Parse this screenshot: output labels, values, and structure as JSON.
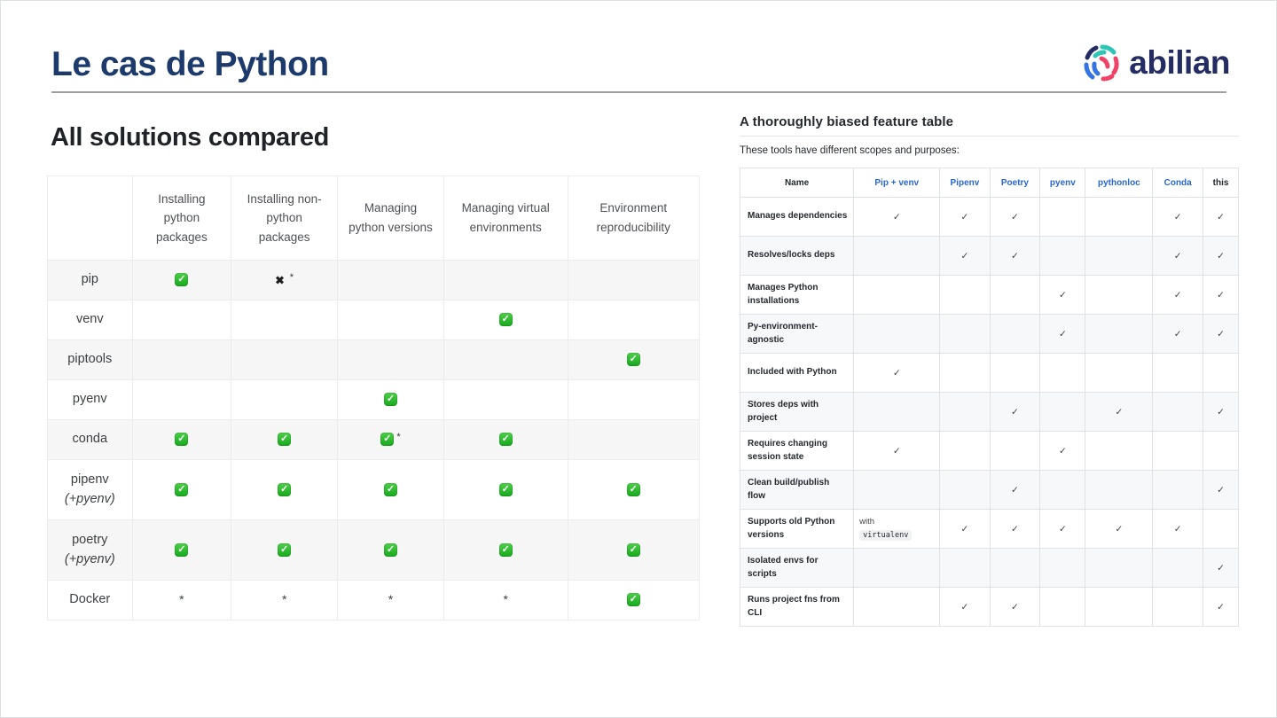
{
  "slide": {
    "title": "Le cas de Python"
  },
  "logo": {
    "wordmark": "abilian"
  },
  "icons": {
    "check": "✓",
    "cross": "✖",
    "asterisk": "*"
  },
  "colors": {
    "title_navy": "#1c3a6b",
    "logo_navy": "#242d63",
    "logo_teal": "#2cc5b6",
    "logo_blue": "#3574e3",
    "logo_pink": "#ef4468",
    "link_blue": "#2866d2",
    "check_green": "#22ac22"
  },
  "left_panel": {
    "heading": "All solutions compared",
    "table": {
      "columns": [
        "",
        "Installing python packages",
        "Installing non-python packages",
        "Managing python versions",
        "Managing virtual environments",
        "Environment reproducibility"
      ],
      "rows": [
        {
          "label": "pip",
          "sublabel": "",
          "cells": [
            "yes",
            "x*",
            "",
            "",
            ""
          ]
        },
        {
          "label": "venv",
          "sublabel": "",
          "cells": [
            "",
            "",
            "",
            "yes",
            ""
          ]
        },
        {
          "label": "piptools",
          "sublabel": "",
          "cells": [
            "",
            "",
            "",
            "",
            "yes"
          ]
        },
        {
          "label": "pyenv",
          "sublabel": "",
          "cells": [
            "",
            "",
            "yes",
            "",
            ""
          ]
        },
        {
          "label": "conda",
          "sublabel": "",
          "cells": [
            "yes",
            "yes",
            "yes*",
            "yes",
            ""
          ]
        },
        {
          "label": "pipenv",
          "sublabel": "(+pyenv)",
          "cells": [
            "yes",
            "yes",
            "yes",
            "yes",
            "yes"
          ]
        },
        {
          "label": "poetry",
          "sublabel": "(+pyenv)",
          "cells": [
            "yes",
            "yes",
            "yes",
            "yes",
            "yes"
          ]
        },
        {
          "label": "Docker",
          "sublabel": "",
          "cells": [
            "*",
            "*",
            "*",
            "*",
            "yes"
          ]
        }
      ]
    }
  },
  "right_panel": {
    "heading": "A thoroughly biased feature table",
    "subtitle": "These tools have different scopes and purposes:",
    "table": {
      "columns": [
        "Name",
        "Pip + venv",
        "Pipenv",
        "Poetry",
        "pyenv",
        "pythonloc",
        "Conda",
        "this"
      ],
      "link_columns": [
        "Pip + venv",
        "Pipenv",
        "Poetry",
        "pyenv",
        "pythonloc",
        "Conda"
      ],
      "rows": [
        {
          "label": "Manages dependencies",
          "cells": [
            "yes",
            "yes",
            "yes",
            "",
            "",
            "yes",
            "yes"
          ]
        },
        {
          "label": "Resolves/locks deps",
          "cells": [
            "",
            "yes",
            "yes",
            "",
            "",
            "yes",
            "yes"
          ]
        },
        {
          "label": "Manages Python installations",
          "cells": [
            "",
            "",
            "",
            "yes",
            "",
            "yes",
            "yes"
          ]
        },
        {
          "label": "Py-environment-agnostic",
          "cells": [
            "",
            "",
            "",
            "yes",
            "",
            "yes",
            "yes"
          ]
        },
        {
          "label": "Included with Python",
          "cells": [
            "yes",
            "",
            "",
            "",
            "",
            "",
            ""
          ]
        },
        {
          "label": "Stores deps with project",
          "cells": [
            "",
            "",
            "yes",
            "",
            "yes",
            "",
            "yes"
          ]
        },
        {
          "label": "Requires changing session state",
          "cells": [
            "yes",
            "",
            "",
            "yes",
            "",
            "",
            ""
          ]
        },
        {
          "label": "Clean build/publish flow",
          "cells": [
            "",
            "",
            "yes",
            "",
            "",
            "",
            "yes"
          ]
        },
        {
          "label": "Supports old Python versions",
          "cells": [
            {
              "text": "with",
              "code": "virtualenv"
            },
            "yes",
            "yes",
            "yes",
            "yes",
            "yes",
            ""
          ]
        },
        {
          "label": "Isolated envs for scripts",
          "cells": [
            "",
            "",
            "",
            "",
            "",
            "",
            "yes"
          ]
        },
        {
          "label": "Runs project fns from CLI",
          "cells": [
            "",
            "yes",
            "yes",
            "",
            "",
            "",
            "yes"
          ]
        }
      ]
    }
  }
}
